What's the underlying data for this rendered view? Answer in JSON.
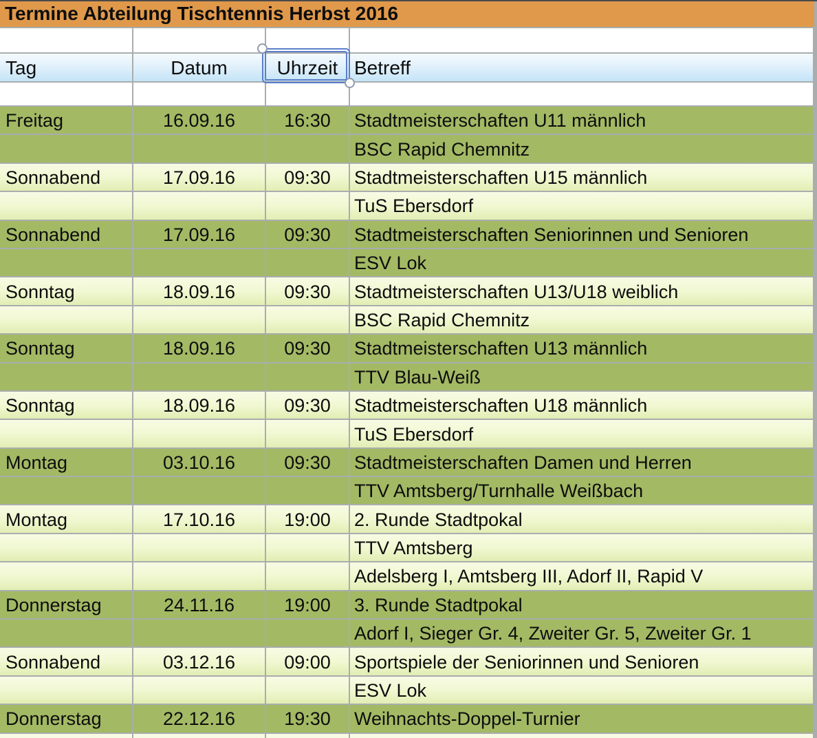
{
  "title": {
    "text": "Termine Abteilung Tischtennis Herbst 2016"
  },
  "header": {
    "tag": "Tag",
    "datum": "Datum",
    "uhrzeit": "Uhrzeit",
    "betreff": "Betreff"
  },
  "selection": {
    "selected_cell": "Uhrzeit"
  },
  "rows": [
    {
      "tag": "Freitag",
      "datum": "16.09.16",
      "uhrzeit": "16:30",
      "betreff": "Stadtmeisterschaften U11 männlich",
      "shade": "dark"
    },
    {
      "tag": "",
      "datum": "",
      "uhrzeit": "",
      "betreff": "BSC Rapid Chemnitz",
      "shade": "dark"
    },
    {
      "tag": "Sonnabend",
      "datum": "17.09.16",
      "uhrzeit": "09:30",
      "betreff": "Stadtmeisterschaften U15 männlich",
      "shade": "light"
    },
    {
      "tag": "",
      "datum": "",
      "uhrzeit": "",
      "betreff": "TuS Ebersdorf",
      "shade": "light"
    },
    {
      "tag": "Sonnabend",
      "datum": "17.09.16",
      "uhrzeit": "09:30",
      "betreff": "Stadtmeisterschaften Seniorinnen und Senioren",
      "shade": "dark"
    },
    {
      "tag": "",
      "datum": "",
      "uhrzeit": "",
      "betreff": "ESV Lok",
      "shade": "dark"
    },
    {
      "tag": "Sonntag",
      "datum": "18.09.16",
      "uhrzeit": "09:30",
      "betreff": "Stadtmeisterschaften U13/U18 weiblich",
      "shade": "light"
    },
    {
      "tag": "",
      "datum": "",
      "uhrzeit": "",
      "betreff": "BSC Rapid Chemnitz",
      "shade": "light"
    },
    {
      "tag": "Sonntag",
      "datum": "18.09.16",
      "uhrzeit": "09:30",
      "betreff": "Stadtmeisterschaften U13 männlich",
      "shade": "dark"
    },
    {
      "tag": "",
      "datum": "",
      "uhrzeit": "",
      "betreff": "TTV Blau-Weiß",
      "shade": "dark"
    },
    {
      "tag": "Sonntag",
      "datum": "18.09.16",
      "uhrzeit": "09:30",
      "betreff": "Stadtmeisterschaften U18 männlich",
      "shade": "light"
    },
    {
      "tag": "",
      "datum": "",
      "uhrzeit": "",
      "betreff": "TuS Ebersdorf",
      "shade": "light"
    },
    {
      "tag": "Montag",
      "datum": "03.10.16",
      "uhrzeit": "09:30",
      "betreff": "Stadtmeisterschaften Damen und Herren",
      "shade": "dark"
    },
    {
      "tag": "",
      "datum": "",
      "uhrzeit": "",
      "betreff": "TTV Amtsberg/Turnhalle Weißbach",
      "shade": "dark"
    },
    {
      "tag": "Montag",
      "datum": "17.10.16",
      "uhrzeit": "19:00",
      "betreff": "2. Runde Stadtpokal",
      "shade": "light"
    },
    {
      "tag": "",
      "datum": "",
      "uhrzeit": "",
      "betreff": "TTV Amtsberg",
      "shade": "light"
    },
    {
      "tag": "",
      "datum": "",
      "uhrzeit": "",
      "betreff": "Adelsberg I, Amtsberg III, Adorf II, Rapid V",
      "shade": "light"
    },
    {
      "tag": "Donnerstag",
      "datum": "24.11.16",
      "uhrzeit": "19:00",
      "betreff": "3. Runde Stadtpokal",
      "shade": "dark"
    },
    {
      "tag": "",
      "datum": "",
      "uhrzeit": "",
      "betreff": "Adorf I, Sieger Gr. 4, Zweiter Gr. 5, Zweiter Gr. 1",
      "shade": "dark"
    },
    {
      "tag": "Sonnabend",
      "datum": "03.12.16",
      "uhrzeit": "09:00",
      "betreff": "Sportspiele der Seniorinnen und Senioren",
      "shade": "light"
    },
    {
      "tag": "",
      "datum": "",
      "uhrzeit": "",
      "betreff": "ESV Lok",
      "shade": "light"
    },
    {
      "tag": "Donnerstag",
      "datum": "22.12.16",
      "uhrzeit": "19:30",
      "betreff": "Weihnachts-Doppel-Turnier",
      "shade": "dark"
    }
  ],
  "colors": {
    "title_bg": "#e0994a",
    "header_top": "#f5fbfe",
    "header_bottom": "#c4e4f7",
    "row_dark": "#a3b964",
    "row_light_top": "#f8fbe4",
    "row_light_bottom": "#e2edb4",
    "grid_line": "#a9adad",
    "selection_border": "#5b7ec9",
    "text": "#0d0d0d"
  }
}
